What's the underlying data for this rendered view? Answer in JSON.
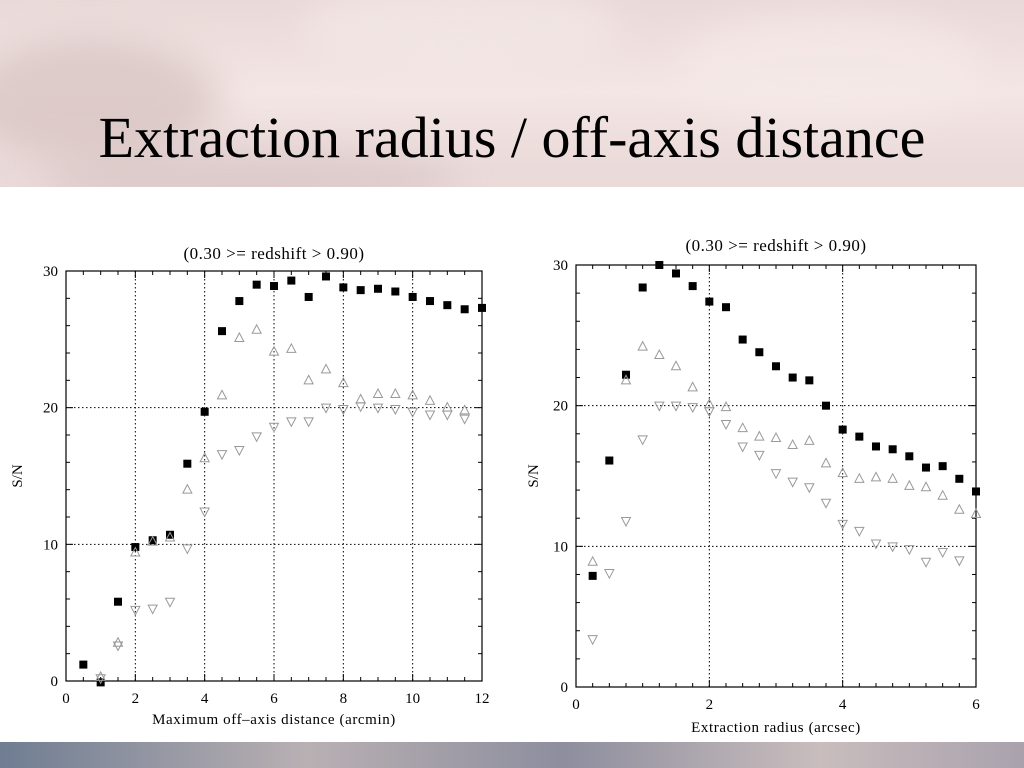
{
  "slide": {
    "title": "Extraction radius / off-axis distance"
  },
  "chart_data": [
    {
      "type": "scatter",
      "title": "(0.30 >= redshift > 0.90)",
      "xlabel": "Maximum off–axis distance (arcmin)",
      "ylabel": "S/N",
      "xlim": [
        0,
        12
      ],
      "ylim": [
        0,
        30
      ],
      "xticks": [
        0,
        2,
        4,
        6,
        8,
        10,
        12
      ],
      "yticks": [
        0,
        10,
        20,
        30
      ],
      "grid": "dotted at 2,4,6,8,10 (x) and 10,20 (y)",
      "series": [
        {
          "marker": "square-filled",
          "color": "#000000",
          "x": [
            0.5,
            1.0,
            1.5,
            2.0,
            2.5,
            3.0,
            3.5,
            4.0,
            4.5,
            5.0,
            5.5,
            6.0,
            6.5,
            7.0,
            7.5,
            8.0,
            8.5,
            9.0,
            9.5,
            10.0,
            10.5,
            11.0,
            11.5,
            12.0
          ],
          "y": [
            1.2,
            -0.1,
            5.8,
            9.8,
            10.3,
            10.7,
            15.9,
            19.7,
            25.6,
            27.8,
            29.0,
            28.9,
            29.3,
            28.1,
            29.6,
            28.8,
            28.6,
            28.7,
            28.5,
            28.1,
            27.8,
            27.5,
            27.2,
            27.3
          ]
        },
        {
          "marker": "triangle-up-open",
          "color": "#999999",
          "x": [
            1.0,
            1.5,
            2.0,
            2.5,
            3.0,
            3.5,
            4.0,
            4.5,
            5.0,
            5.5,
            6.0,
            6.5,
            7.0,
            7.5,
            8.0,
            8.5,
            9.0,
            9.5,
            10.0,
            10.5,
            11.0,
            11.5
          ],
          "y": [
            0.3,
            2.8,
            9.4,
            10.2,
            10.5,
            14.0,
            16.3,
            20.9,
            25.1,
            25.7,
            24.1,
            24.3,
            22.0,
            22.8,
            21.8,
            20.6,
            21.0,
            21.0,
            20.9,
            20.5,
            20.0,
            19.8
          ]
        },
        {
          "marker": "triangle-down-open",
          "color": "#999999",
          "x": [
            1.0,
            1.5,
            2.0,
            2.5,
            3.0,
            3.5,
            4.0,
            4.5,
            5.0,
            5.5,
            6.0,
            6.5,
            7.0,
            7.5,
            8.0,
            8.5,
            9.0,
            9.5,
            10.0,
            10.5,
            11.0,
            11.5
          ],
          "y": [
            0.2,
            2.6,
            5.2,
            5.3,
            5.8,
            9.7,
            12.4,
            16.6,
            16.9,
            17.9,
            18.6,
            19.0,
            19.0,
            20.0,
            19.9,
            20.1,
            20.0,
            19.9,
            19.7,
            19.5,
            19.5,
            19.2
          ]
        }
      ]
    },
    {
      "type": "scatter",
      "title": "(0.30 >= redshift > 0.90)",
      "xlabel": "Extraction radius (arcsec)",
      "ylabel": "S/N",
      "xlim": [
        0,
        6
      ],
      "ylim": [
        0,
        30
      ],
      "xticks": [
        0,
        2,
        4,
        6
      ],
      "yticks": [
        0,
        10,
        20,
        30
      ],
      "grid": "dotted at 2,4 (x) and 10,20 (y)",
      "series": [
        {
          "marker": "square-filled",
          "color": "#000000",
          "x": [
            0.25,
            0.5,
            0.75,
            1.0,
            1.25,
            1.5,
            1.75,
            2.0,
            2.25,
            2.5,
            2.75,
            3.0,
            3.25,
            3.5,
            3.75,
            4.0,
            4.25,
            4.5,
            4.75,
            5.0,
            5.25,
            5.5,
            5.75,
            6.0
          ],
          "y": [
            7.9,
            16.1,
            22.2,
            28.4,
            30.0,
            29.4,
            28.5,
            27.4,
            27.0,
            24.7,
            23.8,
            22.8,
            22.0,
            21.8,
            20.0,
            18.3,
            17.8,
            17.1,
            16.9,
            16.4,
            15.6,
            15.7,
            14.8,
            13.9
          ]
        },
        {
          "marker": "triangle-up-open",
          "color": "#999999",
          "x": [
            0.25,
            0.75,
            1.0,
            1.25,
            1.5,
            1.75,
            2.0,
            2.25,
            2.5,
            2.75,
            3.0,
            3.25,
            3.5,
            3.75,
            4.0,
            4.25,
            4.5,
            4.75,
            5.0,
            5.25,
            5.5,
            5.75,
            6.0
          ],
          "y": [
            8.9,
            21.8,
            24.2,
            23.6,
            22.8,
            21.3,
            20.1,
            19.9,
            18.4,
            17.8,
            17.7,
            17.2,
            17.5,
            15.9,
            15.2,
            14.8,
            14.9,
            14.8,
            14.3,
            14.2,
            13.6,
            12.6,
            12.3
          ]
        },
        {
          "marker": "triangle-down-open",
          "color": "#999999",
          "x": [
            0.25,
            0.5,
            0.75,
            1.0,
            1.25,
            1.5,
            1.75,
            2.0,
            2.25,
            2.5,
            2.75,
            3.0,
            3.25,
            3.5,
            3.75,
            4.0,
            4.25,
            4.5,
            4.75,
            5.0,
            5.25,
            5.5,
            5.75
          ],
          "y": [
            3.4,
            8.1,
            11.8,
            17.6,
            20.0,
            20.0,
            19.9,
            19.6,
            18.7,
            17.1,
            16.5,
            15.2,
            14.6,
            14.2,
            13.1,
            11.6,
            11.1,
            10.2,
            10.0,
            9.8,
            8.9,
            9.6,
            9.0
          ]
        }
      ]
    }
  ]
}
